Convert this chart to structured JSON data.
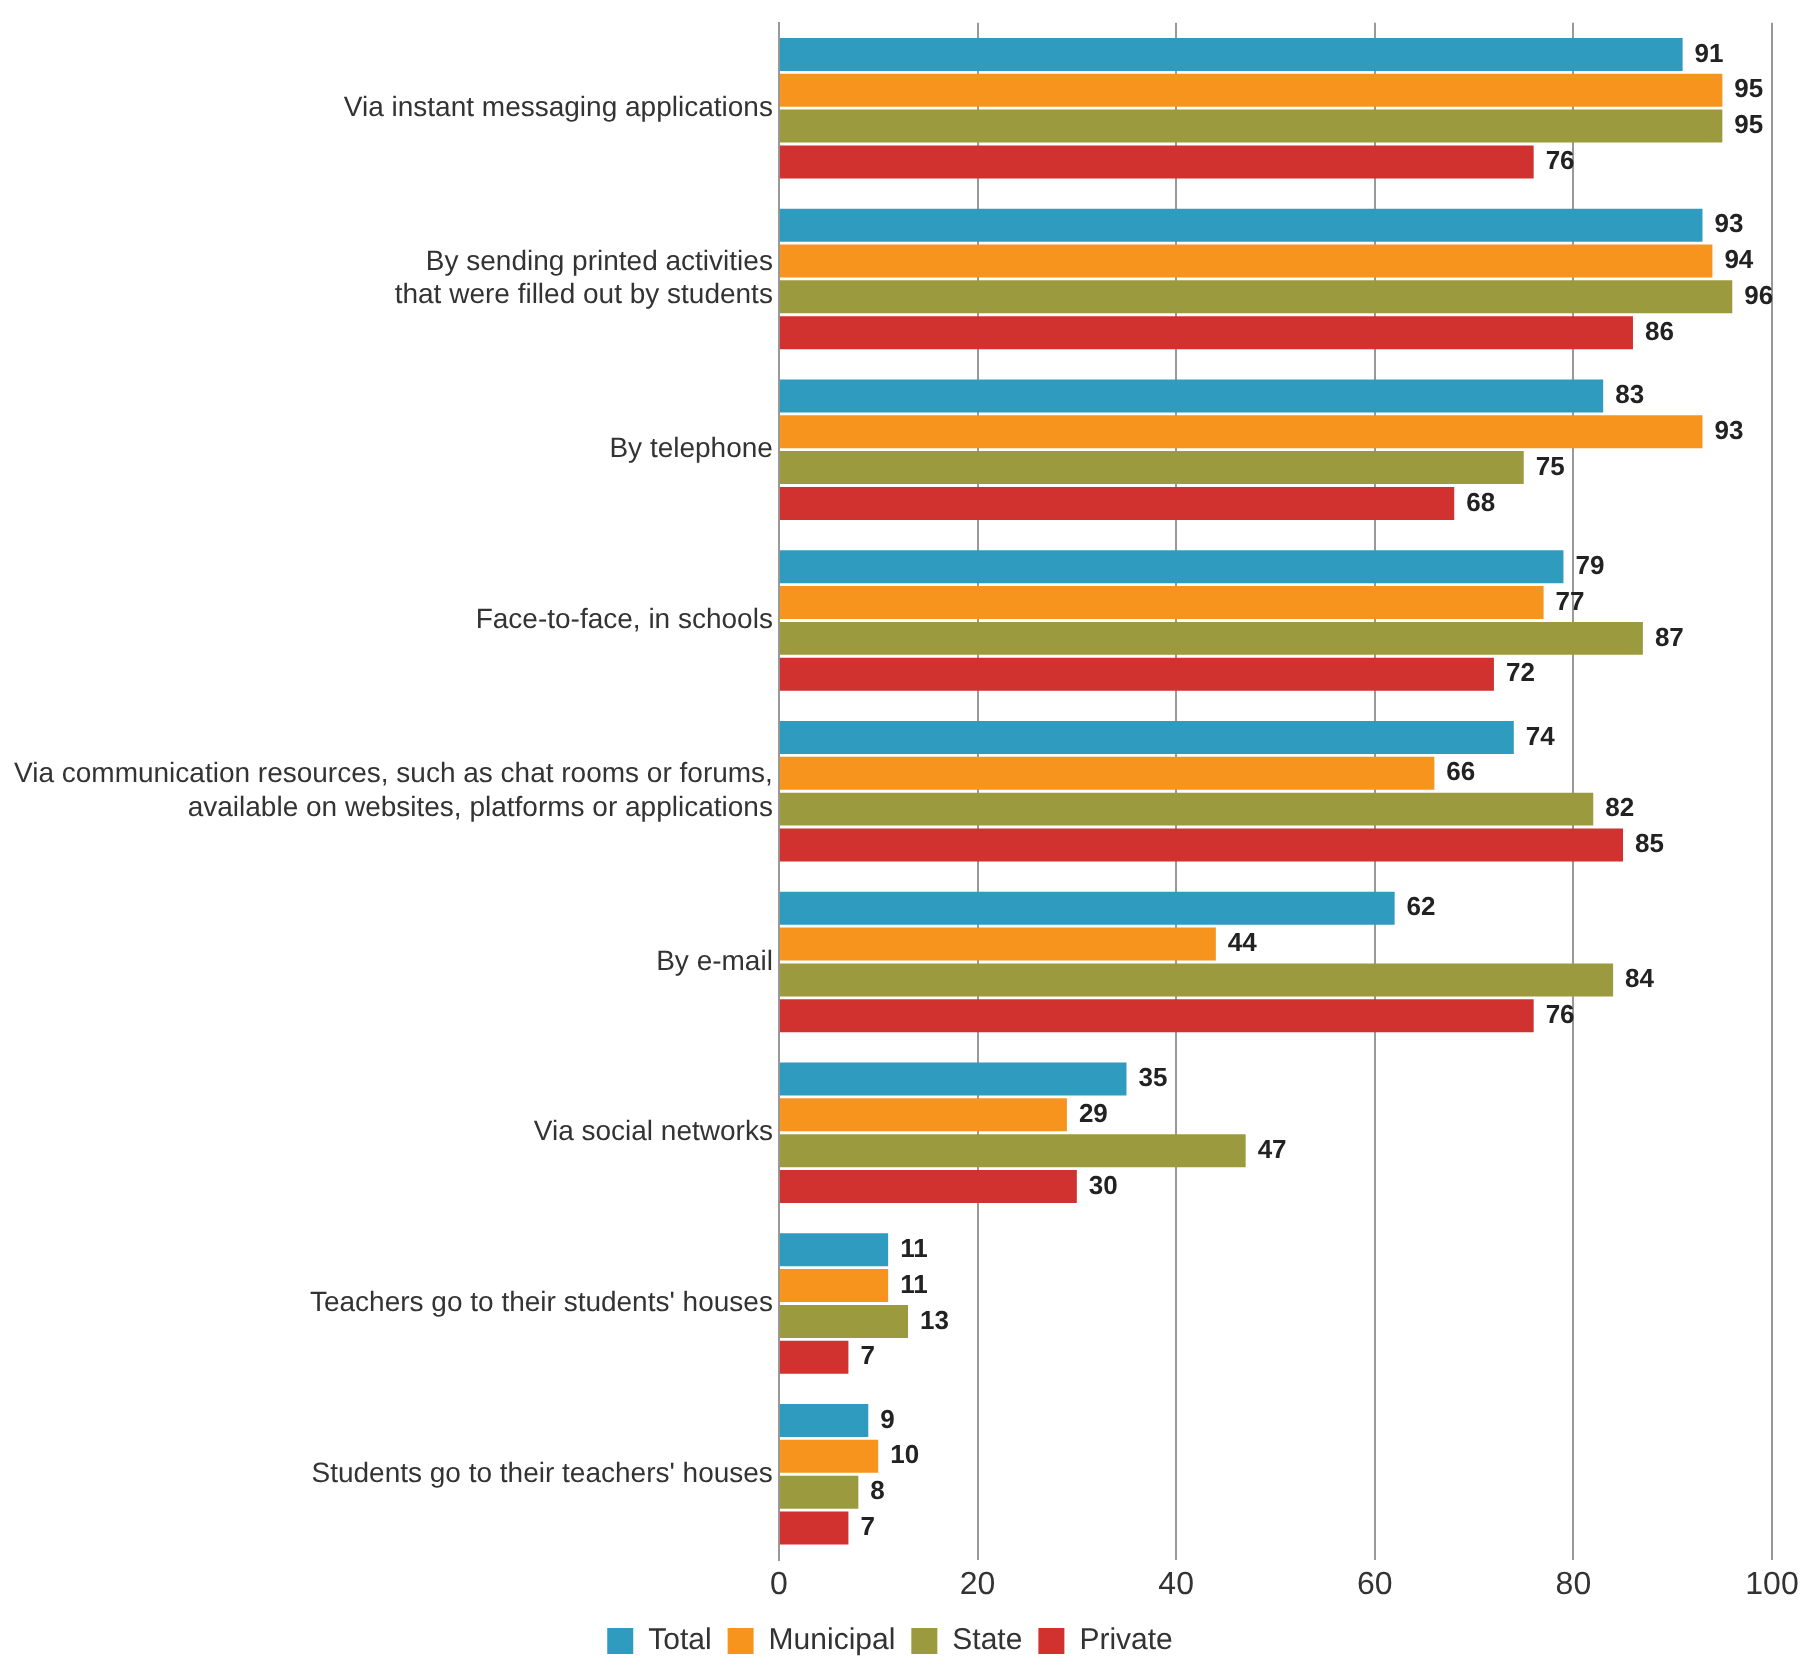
{
  "chart_data": {
    "type": "bar",
    "orientation": "horizontal",
    "categories": [
      "Via instant messaging applications",
      "By sending printed activities\nthat were filled out by students",
      "By telephone",
      "Face-to-face, in schools",
      "Via communication resources, such as chat rooms or forums,\navailable on websites, platforms or applications",
      "By e-mail",
      "Via social networks",
      "Teachers go to their students' houses",
      "Students go to their teachers' houses"
    ],
    "series": [
      {
        "name": "Total",
        "color": "#2e9bbf",
        "values": [
          91,
          93,
          83,
          79,
          74,
          62,
          35,
          11,
          9
        ]
      },
      {
        "name": "Municipal",
        "color": "#f7941d",
        "values": [
          95,
          94,
          93,
          77,
          66,
          44,
          29,
          11,
          10
        ]
      },
      {
        "name": "State",
        "color": "#9c9a3e",
        "values": [
          95,
          96,
          75,
          87,
          82,
          84,
          47,
          13,
          8
        ]
      },
      {
        "name": "Private",
        "color": "#d1312f",
        "values": [
          76,
          86,
          68,
          72,
          85,
          76,
          30,
          7,
          7
        ]
      }
    ],
    "xlim": [
      0,
      100
    ],
    "xticks": [
      0,
      20,
      40,
      60,
      80,
      100
    ],
    "grid": "x",
    "legend": "bottom",
    "data_labels": true
  }
}
